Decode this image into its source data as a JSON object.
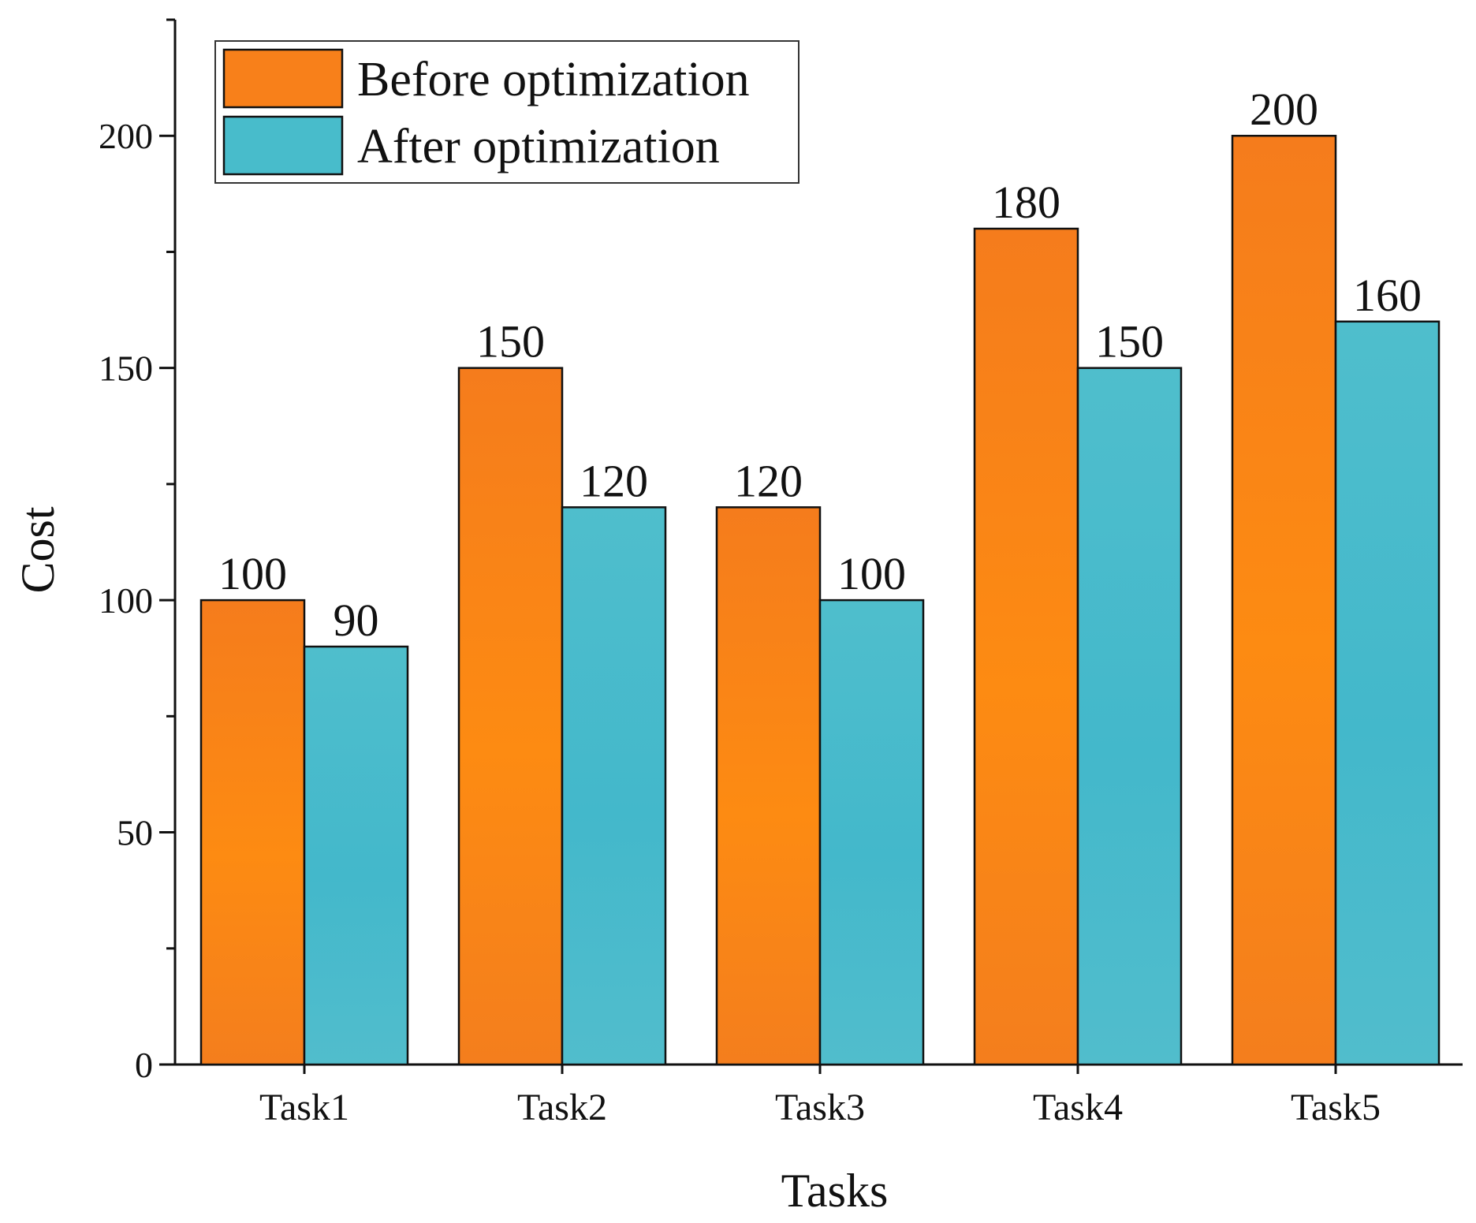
{
  "chart_data": {
    "type": "bar",
    "title": "",
    "xlabel": "Tasks",
    "ylabel": "Cost",
    "ylim": [
      0,
      225
    ],
    "yticks": [
      0,
      50,
      100,
      150,
      200
    ],
    "yminor_step": 25,
    "grid": false,
    "legend_position": "top-left",
    "categories": [
      "Task1",
      "Task2",
      "Task3",
      "Task4",
      "Task5"
    ],
    "series": [
      {
        "name": "Before optimization",
        "color": "#f8801a",
        "values": [
          100,
          150,
          120,
          180,
          200
        ]
      },
      {
        "name": "After optimization",
        "color": "#48bccb",
        "values": [
          90,
          120,
          100,
          150,
          160
        ]
      }
    ]
  }
}
